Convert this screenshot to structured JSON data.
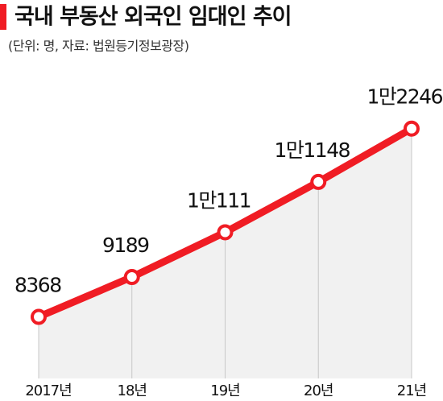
{
  "chart_data": {
    "type": "line",
    "title": "국내 부동산 외국인 임대인 추이",
    "subtitle": "(단위: 명, 자료: 법원등기정보광장)",
    "categories": [
      "2017년",
      "18년",
      "19년",
      "20년",
      "21년"
    ],
    "values": [
      8368,
      9189,
      10111,
      11148,
      12246
    ],
    "value_labels": [
      "8368",
      "9189",
      "1만111",
      "1만1148",
      "1만2246"
    ],
    "color": "#f01c24",
    "ylim": [
      7100,
      13900
    ]
  }
}
